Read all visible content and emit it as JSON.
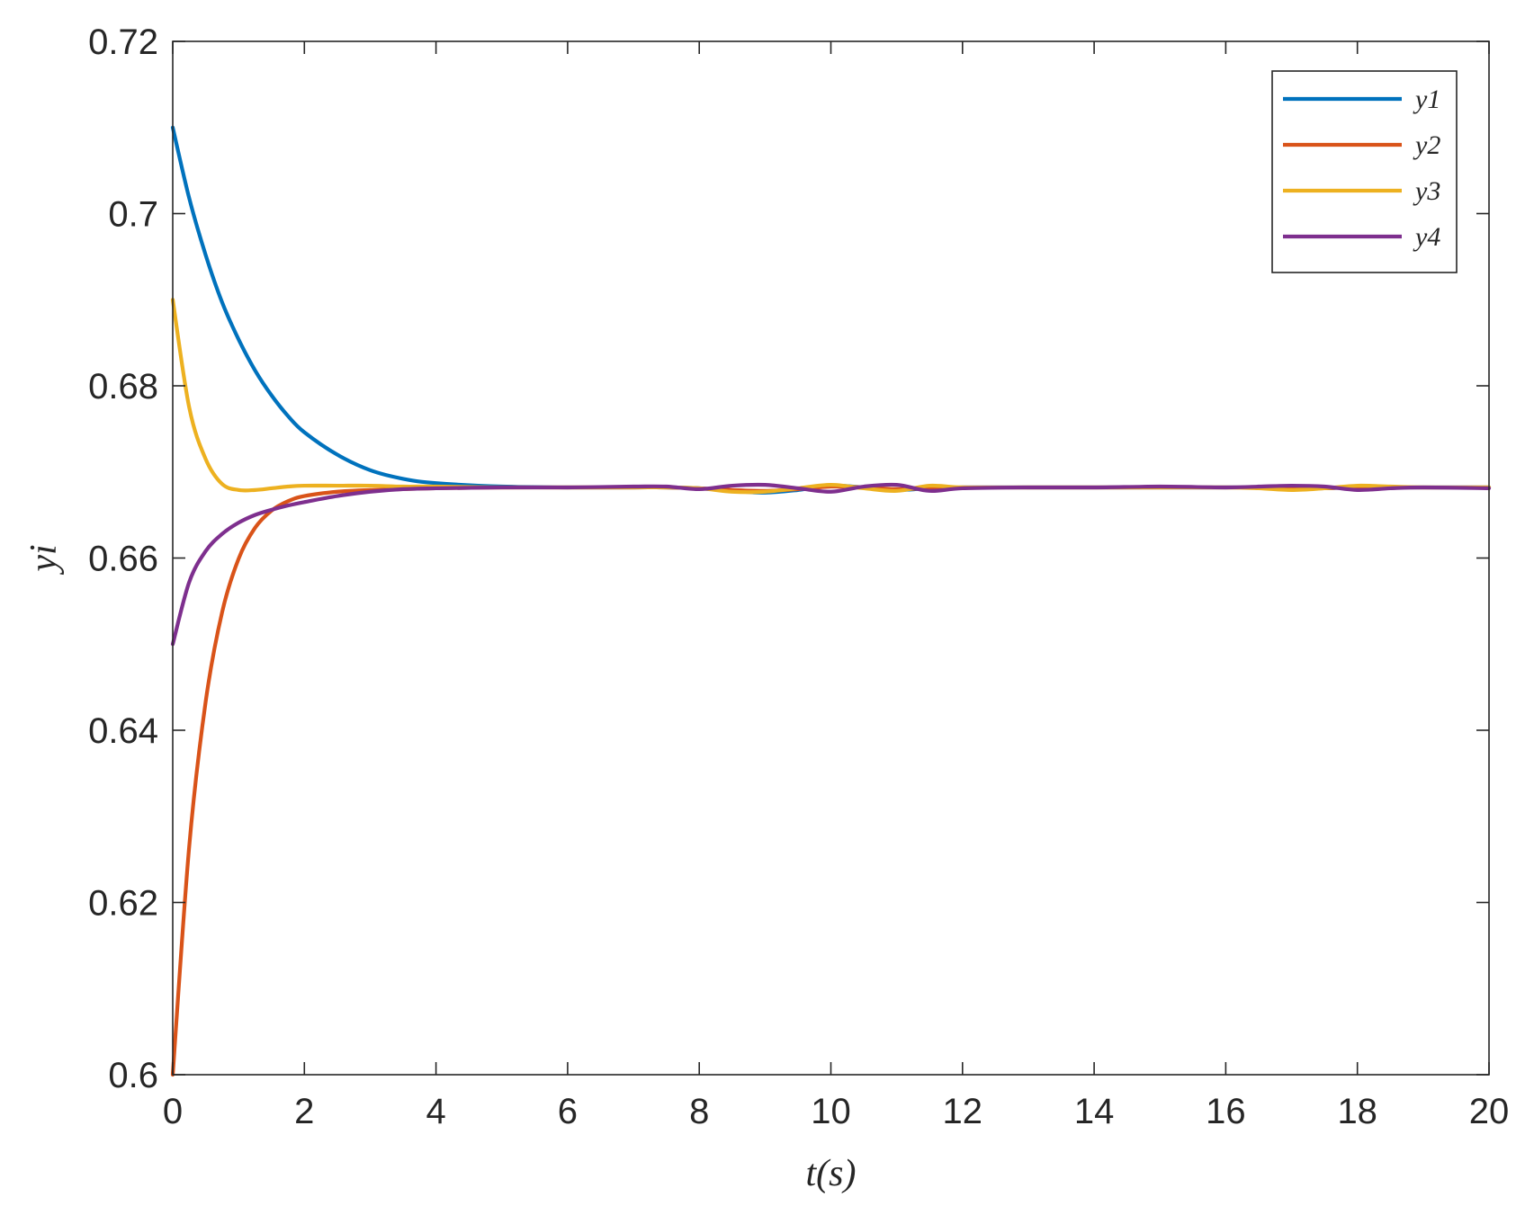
{
  "chart_data": {
    "type": "line",
    "title": "",
    "xlabel": "t(s)",
    "ylabel": "yi",
    "xlim": [
      0,
      20
    ],
    "ylim": [
      0.6,
      0.72
    ],
    "x_ticks": [
      0,
      2,
      4,
      6,
      8,
      10,
      12,
      14,
      16,
      18,
      20
    ],
    "x_tick_labels": [
      "0",
      "2",
      "4",
      "6",
      "8",
      "10",
      "12",
      "14",
      "16",
      "18",
      "20"
    ],
    "y_ticks": [
      0.6,
      0.62,
      0.64,
      0.66,
      0.68,
      0.7,
      0.72
    ],
    "y_tick_labels": [
      "0.6",
      "0.62",
      "0.64",
      "0.66",
      "0.68",
      "0.7",
      "0.72"
    ],
    "grid": false,
    "legend_position": "top-right",
    "x": [
      0,
      0.25,
      0.5,
      0.75,
      1,
      1.25,
      1.5,
      1.75,
      2,
      2.5,
      3,
      3.5,
      4,
      5,
      6,
      7,
      7.5,
      8,
      8.5,
      9,
      9.5,
      10,
      10.5,
      11,
      11.5,
      12,
      13,
      14,
      15,
      16,
      16.5,
      17,
      17.5,
      18,
      18.5,
      19,
      20
    ],
    "series": [
      {
        "name": "y1",
        "color": "#0072BD",
        "values": [
          0.71,
          0.7018,
          0.6952,
          0.6897,
          0.6854,
          0.6818,
          0.6789,
          0.6765,
          0.6746,
          0.672,
          0.6702,
          0.6692,
          0.6687,
          0.6683,
          0.6682,
          0.6682,
          0.6682,
          0.6681,
          0.6678,
          0.6676,
          0.6679,
          0.6684,
          0.6682,
          0.6679,
          0.6681,
          0.6682,
          0.6682,
          0.6682,
          0.6682,
          0.6682,
          0.6682,
          0.6681,
          0.6681,
          0.6682,
          0.6682,
          0.6682,
          0.6682
        ]
      },
      {
        "name": "y2",
        "color": "#D95319",
        "values": [
          0.6,
          0.6265,
          0.6433,
          0.6537,
          0.6599,
          0.6635,
          0.6655,
          0.6666,
          0.6672,
          0.6677,
          0.6679,
          0.668,
          0.6681,
          0.6682,
          0.6682,
          0.6682,
          0.6682,
          0.6681,
          0.6679,
          0.6678,
          0.668,
          0.6683,
          0.6682,
          0.668,
          0.6681,
          0.6682,
          0.6682,
          0.6682,
          0.6682,
          0.6682,
          0.6682,
          0.6681,
          0.6681,
          0.6682,
          0.6682,
          0.6682,
          0.6682
        ]
      },
      {
        "name": "y3",
        "color": "#EDB120",
        "values": [
          0.69,
          0.6775,
          0.6715,
          0.6686,
          0.6679,
          0.6679,
          0.6681,
          0.6683,
          0.6684,
          0.6684,
          0.6684,
          0.6683,
          0.6683,
          0.6682,
          0.6682,
          0.6682,
          0.6682,
          0.6681,
          0.6677,
          0.6677,
          0.6681,
          0.6685,
          0.6681,
          0.6678,
          0.6684,
          0.6682,
          0.6682,
          0.6682,
          0.6682,
          0.6682,
          0.6681,
          0.6679,
          0.6681,
          0.6684,
          0.6683,
          0.6682,
          0.6682
        ]
      },
      {
        "name": "y4",
        "color": "#7E2F8E",
        "values": [
          0.65,
          0.6572,
          0.6608,
          0.6628,
          0.6641,
          0.665,
          0.6656,
          0.6661,
          0.6665,
          0.6672,
          0.6677,
          0.668,
          0.6681,
          0.6682,
          0.6682,
          0.6683,
          0.6683,
          0.668,
          0.6684,
          0.6685,
          0.6681,
          0.6677,
          0.6683,
          0.6685,
          0.6678,
          0.6681,
          0.6682,
          0.6682,
          0.6683,
          0.6682,
          0.6683,
          0.6684,
          0.6683,
          0.6679,
          0.6681,
          0.6682,
          0.6681
        ]
      }
    ]
  }
}
